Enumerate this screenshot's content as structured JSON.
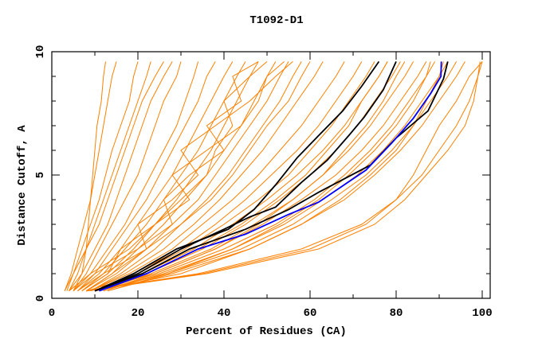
{
  "chart_data": {
    "type": "line",
    "title": "T1092-D1",
    "xlabel": "Percent of Residues (CA)",
    "ylabel": "Distance Cutoff, A",
    "xlim": [
      0,
      102
    ],
    "ylim": [
      0,
      10
    ],
    "x_ticks": [
      "0",
      "20",
      "40",
      "60",
      "80",
      "100"
    ],
    "y_ticks": [
      "0",
      "5",
      "10"
    ],
    "grid": false,
    "legend": "none",
    "colors": {
      "models": "#ff8000",
      "highlight_black": "#000000",
      "highlight_blue": "#0000ff"
    },
    "orange_levels": [
      0.3,
      1,
      2,
      3,
      4,
      5,
      6,
      7,
      8,
      9,
      9.6
    ],
    "orange_series": [
      [
        3,
        4.5,
        6,
        7.5,
        9,
        10,
        11,
        12,
        13,
        14,
        15
      ],
      [
        3.5,
        5,
        7,
        9,
        11,
        12.5,
        14,
        16,
        18,
        19,
        20
      ],
      [
        4,
        6,
        8,
        10,
        12,
        14,
        16,
        18,
        20,
        22,
        23
      ],
      [
        3,
        5,
        8,
        11,
        13,
        15,
        17,
        19,
        21,
        24,
        26
      ],
      [
        4,
        7,
        10,
        13,
        15,
        17,
        19,
        21,
        23,
        26,
        28
      ],
      [
        5,
        8,
        11,
        14,
        17,
        20,
        22,
        24,
        26,
        29,
        30
      ],
      [
        5,
        7,
        8,
        8.5,
        9,
        9.5,
        10,
        10.5,
        11.5,
        12,
        12.5
      ],
      [
        5,
        9,
        13,
        17,
        20,
        23,
        26,
        29,
        31,
        33,
        34
      ],
      [
        6,
        10,
        14,
        18,
        22,
        25,
        28,
        31,
        34,
        36,
        38
      ],
      [
        6,
        11,
        16,
        20,
        24,
        28,
        31,
        34,
        37,
        40,
        42
      ],
      [
        7,
        12,
        17,
        22,
        26,
        30,
        34,
        37,
        40,
        43,
        45
      ],
      [
        7,
        13,
        19,
        24,
        29,
        33,
        37,
        40,
        43,
        46,
        48
      ],
      [
        8,
        14,
        20,
        26,
        31,
        36,
        40,
        44,
        47,
        50,
        52
      ],
      [
        8,
        15,
        22,
        28,
        34,
        38,
        42,
        46,
        50,
        53,
        55
      ],
      [
        9,
        16,
        24,
        30,
        36,
        41,
        45,
        49,
        53,
        56,
        58
      ],
      [
        8,
        14,
        22,
        30,
        37,
        42,
        46,
        50,
        55,
        58,
        60
      ],
      [
        9,
        17,
        26,
        33,
        39,
        44,
        49,
        53,
        57,
        61,
        63
      ],
      [
        9,
        18,
        28,
        35,
        42,
        48,
        53,
        58,
        62,
        66,
        68
      ],
      [
        10,
        19,
        30,
        38,
        45,
        51,
        57,
        62,
        66,
        70,
        72
      ],
      [
        10,
        20,
        31,
        40,
        48,
        55,
        60,
        65,
        69,
        73,
        75
      ],
      [
        11,
        21,
        33,
        42,
        50,
        57,
        63,
        68,
        72,
        76,
        78
      ],
      [
        10,
        22,
        35,
        45,
        53,
        60,
        66,
        71,
        75,
        79,
        81
      ],
      [
        11,
        23,
        37,
        47,
        56,
        63,
        69,
        74,
        78,
        82,
        84
      ],
      [
        12,
        24,
        38,
        49,
        58,
        66,
        72,
        77,
        81,
        85,
        87
      ],
      [
        12,
        25,
        40,
        52,
        61,
        68,
        74,
        79,
        83,
        87,
        89
      ],
      [
        12,
        26,
        42,
        54,
        63,
        71,
        77,
        82,
        86,
        90,
        92
      ],
      [
        13,
        27,
        44,
        56,
        65,
        73,
        79,
        84,
        88,
        92,
        94
      ],
      [
        13,
        28,
        46,
        58,
        68,
        75,
        81,
        86,
        90,
        94,
        96
      ],
      [
        8,
        22,
        34,
        44,
        52,
        59,
        64,
        69,
        72,
        76,
        78
      ],
      [
        9,
        24,
        38,
        48,
        56,
        63,
        68,
        73,
        77,
        80,
        82
      ],
      [
        10,
        27,
        42,
        53,
        62,
        69,
        75,
        80,
        84,
        87,
        88
      ],
      [
        10,
        30,
        46,
        58,
        67,
        74,
        80,
        84,
        87,
        90,
        91
      ],
      [
        8,
        35,
        60,
        73,
        80,
        84,
        87,
        90,
        94,
        97,
        100
      ],
      [
        8,
        36,
        62,
        75,
        82,
        87,
        92,
        96,
        98,
        99,
        99.5
      ],
      [
        8,
        34,
        58,
        72,
        80,
        86,
        90,
        94,
        97,
        99,
        100
      ],
      [
        4,
        9,
        18,
        24,
        30,
        36,
        38,
        42,
        40,
        46,
        50
      ],
      [
        5,
        10,
        20,
        28,
        26,
        32,
        40,
        36,
        44,
        42,
        48
      ],
      [
        6,
        12,
        22,
        20,
        28,
        34,
        30,
        38,
        46,
        52,
        56
      ],
      [
        7,
        13,
        16,
        24,
        32,
        28,
        36,
        44,
        48,
        50,
        54
      ]
    ],
    "highlight_series": [
      {
        "color": "#000000",
        "points": [
          [
            10,
            0.3
          ],
          [
            19,
            1
          ],
          [
            29,
            2
          ],
          [
            41,
            2.8
          ],
          [
            47,
            3.6
          ],
          [
            52,
            4.6
          ],
          [
            57,
            5.7
          ],
          [
            62,
            6.6
          ],
          [
            67.6,
            7.6
          ],
          [
            72,
            8.6
          ],
          [
            76,
            9.6
          ]
        ]
      },
      {
        "color": "#000000",
        "points": [
          [
            10,
            0.3
          ],
          [
            20,
            1
          ],
          [
            30,
            2
          ],
          [
            40,
            2.8
          ],
          [
            46,
            3.3
          ],
          [
            52,
            3.7
          ],
          [
            58,
            4.7
          ],
          [
            64,
            5.6
          ],
          [
            69,
            6.6
          ],
          [
            72.6,
            7.35
          ],
          [
            77,
            8.45
          ],
          [
            80,
            9.6
          ]
        ]
      },
      {
        "color": "#000000",
        "points": [
          [
            10,
            0.3
          ],
          [
            21,
            1
          ],
          [
            32,
            2
          ],
          [
            45,
            2.8
          ],
          [
            55,
            3.6
          ],
          [
            62,
            4.3
          ],
          [
            74,
            5.4
          ],
          [
            80,
            6.5
          ],
          [
            87.4,
            7.6
          ],
          [
            91,
            8.9
          ],
          [
            92,
            9.6
          ]
        ]
      },
      {
        "color": "#0000ff",
        "points": [
          [
            11,
            0.3
          ],
          [
            22,
            1
          ],
          [
            34,
            2
          ],
          [
            45,
            2.6
          ],
          [
            55,
            3.4
          ],
          [
            62,
            3.9
          ],
          [
            73,
            5.2
          ],
          [
            79,
            6.3
          ],
          [
            84,
            7.3
          ],
          [
            88,
            8.3
          ],
          [
            90.4,
            9
          ],
          [
            90.5,
            9.6
          ]
        ]
      }
    ]
  }
}
